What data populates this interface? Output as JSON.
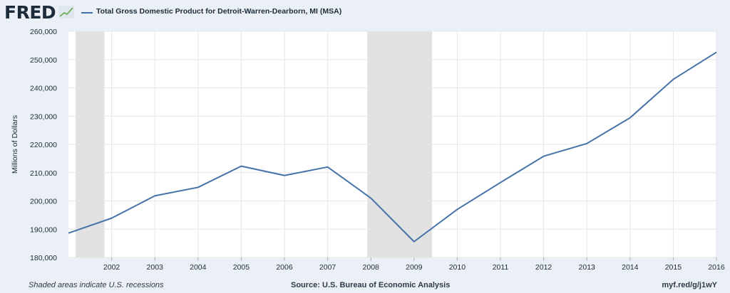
{
  "header": {
    "logo_text": "FRED",
    "legend_label": "Total Gross Domestic Product for Detroit-Warren-Dearborn, MI (MSA)"
  },
  "footer": {
    "note": "Shaded areas indicate U.S. recessions",
    "source": "Source: U.S. Bureau of Economic Analysis",
    "link": "myf.red/g/j1wY"
  },
  "colors": {
    "series": "#4572a7",
    "recession": "#e1e1e1",
    "background": "#eaf0f5",
    "plot": "#ffffff"
  },
  "chart_data": {
    "type": "line",
    "title": "",
    "xlabel": "",
    "ylabel": "Millions of Dollars",
    "x": [
      2001,
      2002,
      2003,
      2004,
      2005,
      2006,
      2007,
      2008,
      2009,
      2010,
      2011,
      2012,
      2013,
      2014,
      2015,
      2016
    ],
    "xlim": [
      2001,
      2016
    ],
    "xticks": [
      2002,
      2003,
      2004,
      2005,
      2006,
      2007,
      2008,
      2009,
      2010,
      2011,
      2012,
      2013,
      2014,
      2015,
      2016
    ],
    "ylim": [
      180000,
      260000
    ],
    "yticks": [
      180000,
      190000,
      200000,
      210000,
      220000,
      230000,
      240000,
      250000,
      260000
    ],
    "ytick_labels": [
      "180,000",
      "190,000",
      "200,000",
      "210,000",
      "220,000",
      "230,000",
      "240,000",
      "250,000",
      "260,000"
    ],
    "series": [
      {
        "name": "Total Gross Domestic Product for Detroit-Warren-Dearborn, MI (MSA)",
        "values": [
          188600,
          193900,
          201800,
          204800,
          212300,
          209000,
          212000,
          201000,
          185600,
          197000,
          206500,
          215800,
          220300,
          229400,
          243000,
          252600
        ]
      }
    ],
    "recessions": [
      [
        "2001-03",
        "2001-11"
      ],
      [
        "2007-12",
        "2009-06"
      ]
    ],
    "grid": true,
    "legend_position": "top-left"
  }
}
